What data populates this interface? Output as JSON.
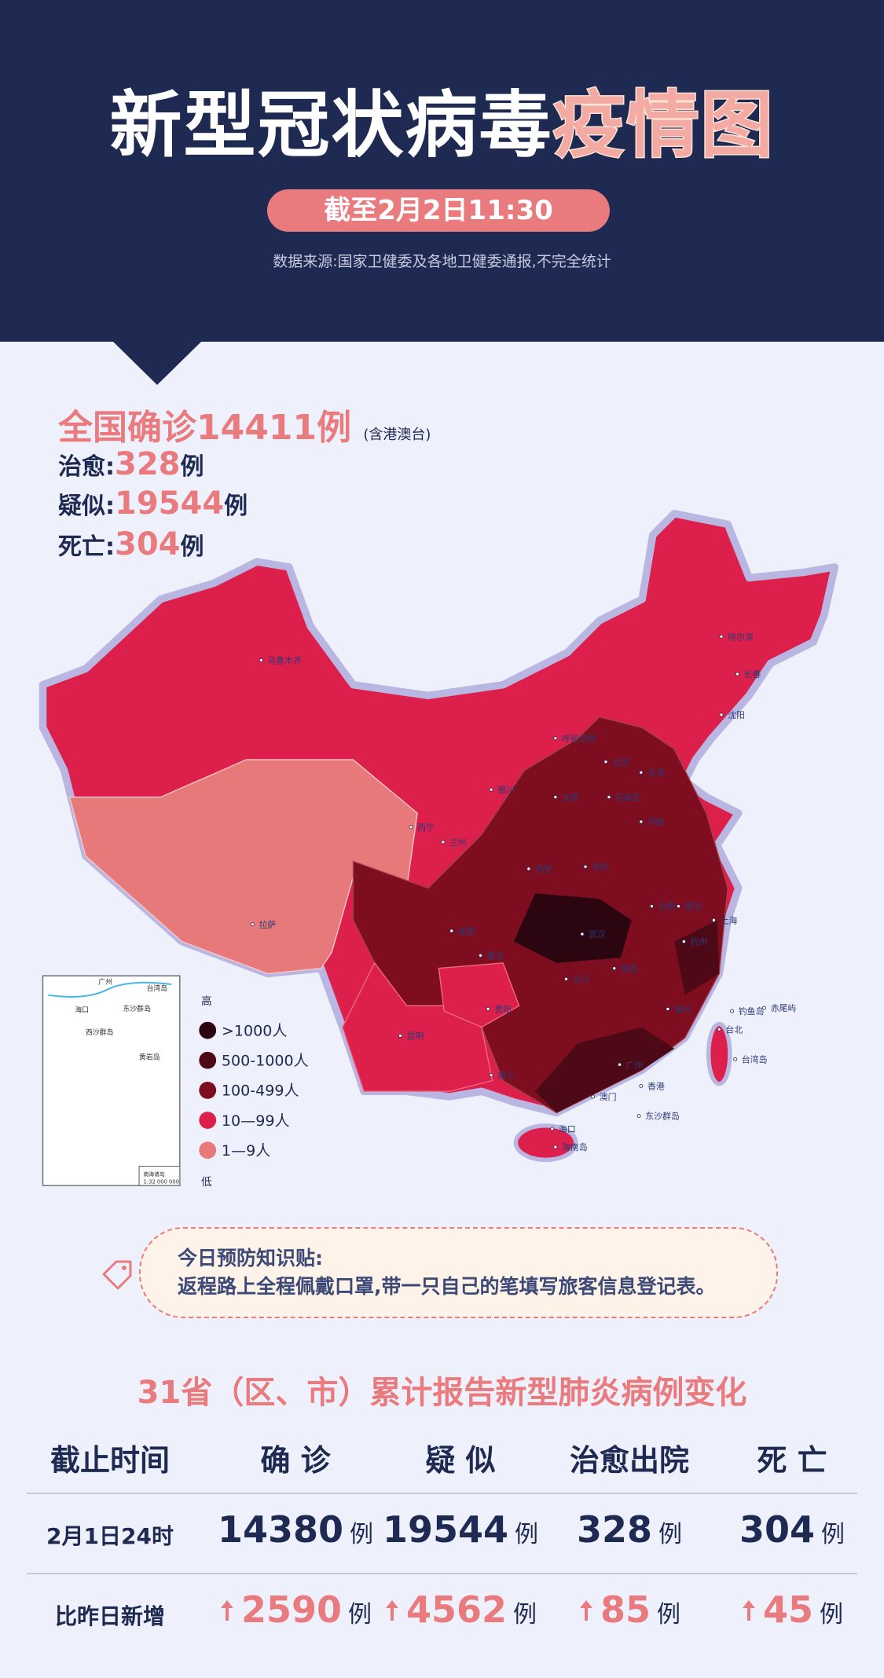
{
  "header": {
    "title": "新型冠状病毒",
    "title_highlight": "疫情图",
    "date": "截至2月2日11:30",
    "source": "数据来源:国家卫健委及各地卫健委通报,不完全统计"
  },
  "summary": {
    "confirmed_label": "全国确诊",
    "confirmed": 14411,
    "unit": "例",
    "note": "(含港澳台)",
    "items": [
      {
        "label": "治愈:",
        "value": 328
      },
      {
        "label": "疑似:",
        "value": 19544
      },
      {
        "label": "死亡:",
        "value": 304
      }
    ]
  },
  "map": {
    "city_labels": [
      "乌鲁木齐",
      "哈尔滨",
      "长春",
      "沈阳",
      "呼和浩特",
      "北京",
      "天津",
      "银川",
      "太原",
      "石家庄",
      "济南",
      "西宁",
      "兰州",
      "西安",
      "郑州",
      "合肥",
      "南京",
      "上海",
      "拉萨",
      "成都",
      "重庆",
      "武汉",
      "杭州",
      "长沙",
      "南昌",
      "贵阳",
      "福州",
      "台北",
      "昆明",
      "南宁",
      "广州",
      "香港",
      "澳门",
      "海口",
      "海南岛",
      "台湾岛",
      "东沙群岛",
      "钓鱼岛",
      "赤尾屿"
    ],
    "inset_labels": [
      "广州",
      "台湾岛",
      "海口",
      "东沙群岛",
      "西沙群岛",
      "黄岩岛",
      "南海诸岛",
      "1:32 000 000"
    ],
    "legend": {
      "high": "高",
      "low": "低",
      "items": [
        {
          "label": ">1000人",
          "color": "#2b0610"
        },
        {
          "label": "500-1000人",
          "color": "#4d0a16"
        },
        {
          "label": "100-499人",
          "color": "#7e0e1f"
        },
        {
          "label": "10—99人",
          "color": "#dc1f4b"
        },
        {
          "label": "1—9人",
          "color": "#e8797b"
        }
      ]
    }
  },
  "tip": {
    "title": "今日预防知识贴:",
    "text": "返程路上全程佩戴口罩,带一只自己的笔填写旅客信息登记表。"
  },
  "table": {
    "title": "31省（区、市）累计报告新型肺炎病例变化",
    "columns": [
      "截止时间",
      "确 诊",
      "疑 似",
      "治愈出院",
      "死 亡"
    ],
    "unit": "例",
    "rows": [
      {
        "label": "2月1日24时",
        "values": [
          14380,
          19544,
          328,
          304
        ]
      },
      {
        "label": "比昨日新增",
        "values": [
          2590,
          4562,
          85,
          45
        ]
      }
    ]
  }
}
